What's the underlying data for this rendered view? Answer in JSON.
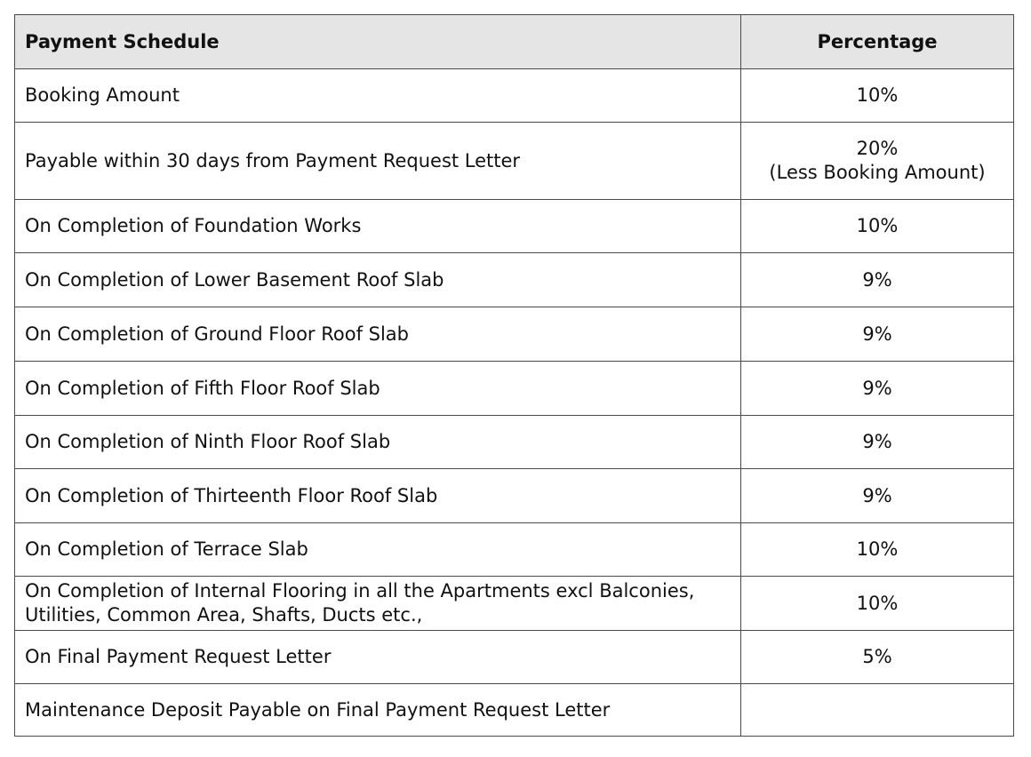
{
  "table": {
    "headers": {
      "schedule": "Payment Schedule",
      "percentage": "Percentage"
    },
    "rows": [
      {
        "schedule": "Booking Amount",
        "percentage": "10%"
      },
      {
        "schedule": "Payable within 30 days from Payment Request Letter",
        "percentage": "20%",
        "percentage_note": "(Less Booking Amount)"
      },
      {
        "schedule": "On Completion of Foundation Works",
        "percentage": "10%"
      },
      {
        "schedule": "On Completion of Lower Basement Roof Slab",
        "percentage": "9%"
      },
      {
        "schedule": "On Completion of Ground Floor Roof Slab",
        "percentage": "9%"
      },
      {
        "schedule": "On Completion of Fifth Floor Roof Slab",
        "percentage": "9%"
      },
      {
        "schedule": "On Completion of Ninth Floor Roof Slab",
        "percentage": "9%"
      },
      {
        "schedule": "On Completion of Thirteenth Floor Roof Slab",
        "percentage": "9%"
      },
      {
        "schedule": "On Completion of Terrace Slab",
        "percentage": "10%"
      },
      {
        "schedule": "On Completion of Internal Flooring in all the Apartments excl Balconies,",
        "schedule_line2": "Utilities, Common Area, Shafts, Ducts etc.,",
        "percentage": "10%"
      },
      {
        "schedule": "On Final Payment Request Letter",
        "percentage": "5%"
      },
      {
        "schedule": "Maintenance Deposit Payable on Final Payment Request Letter",
        "percentage": ""
      }
    ]
  }
}
